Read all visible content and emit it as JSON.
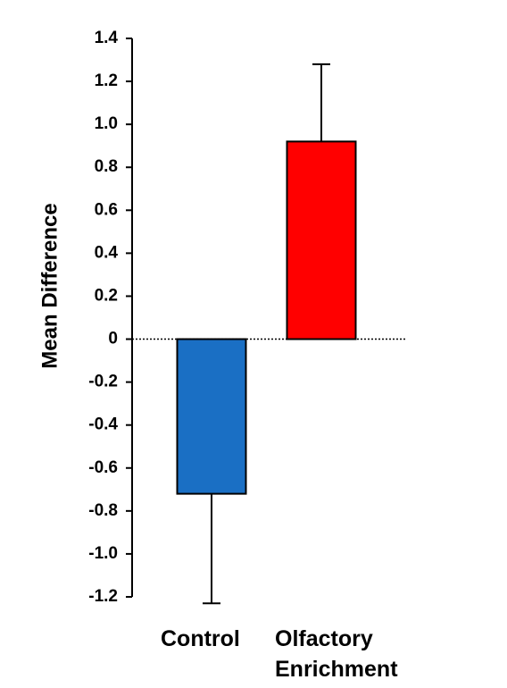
{
  "chart_data": {
    "type": "bar",
    "ylabel": "Mean Difference",
    "categories": [
      "Control",
      "Olfactory Enrichment"
    ],
    "values": [
      -0.72,
      0.92
    ],
    "errors": [
      0.51,
      0.36
    ],
    "colors": [
      "#1a6fc4",
      "#ff0000"
    ],
    "ylim": [
      -1.2,
      1.4
    ],
    "yticks": [
      {
        "value": -1.2,
        "label": "-1.2"
      },
      {
        "value": -1,
        "label": "-1.0"
      },
      -0.8,
      -0.6,
      -0.4,
      -0.2,
      0,
      0.2,
      0.4,
      0.6,
      0.8,
      {
        "value": 1,
        "label": "1.0"
      },
      1.2,
      1.4
    ],
    "zero_line": true
  }
}
